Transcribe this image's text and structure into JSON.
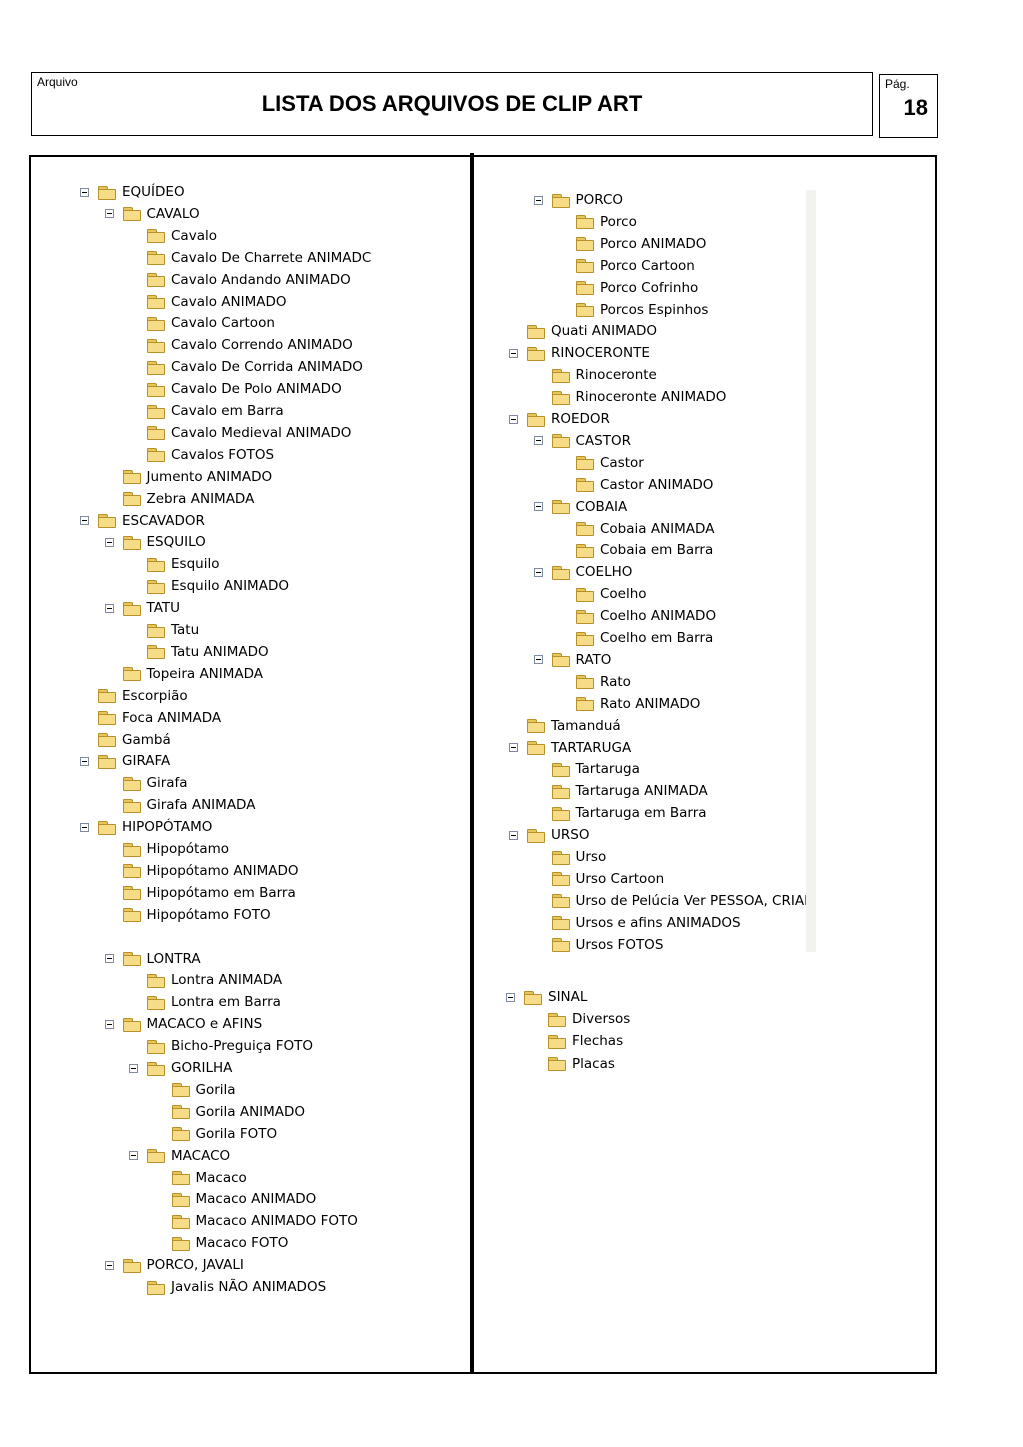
{
  "header": {
    "arquivo_label": "Arquivo",
    "title": "LISTA DOS ARQUIVOS DE CLIP ART",
    "pag_label": "Pág.",
    "page_number": "18"
  },
  "left_tree": [
    {
      "label": "EQUÍDEO",
      "level": 0,
      "expanded": true
    },
    {
      "label": "CAVALO",
      "level": 1,
      "expanded": true
    },
    {
      "label": "Cavalo",
      "level": 2
    },
    {
      "label": "Cavalo  De Charrete ANIMADC",
      "level": 2
    },
    {
      "label": "Cavalo Andando ANIMADO",
      "level": 2
    },
    {
      "label": "Cavalo ANIMADO",
      "level": 2
    },
    {
      "label": "Cavalo Cartoon",
      "level": 2
    },
    {
      "label": "Cavalo Correndo ANIMADO",
      "level": 2
    },
    {
      "label": "Cavalo De Corrida ANIMADO",
      "level": 2
    },
    {
      "label": "Cavalo De Polo  ANIMADO",
      "level": 2
    },
    {
      "label": "Cavalo em Barra",
      "level": 2
    },
    {
      "label": "Cavalo Medieval  ANIMADO",
      "level": 2
    },
    {
      "label": "Cavalos FOTOS",
      "level": 2
    },
    {
      "label": "Jumento ANIMADO",
      "level": 1
    },
    {
      "label": "Zebra ANIMADA",
      "level": 1
    },
    {
      "label": "ESCAVADOR",
      "level": 0,
      "expanded": true
    },
    {
      "label": "ESQUILO",
      "level": 1,
      "expanded": true
    },
    {
      "label": "Esquilo",
      "level": 2
    },
    {
      "label": "Esquilo ANIMADO",
      "level": 2
    },
    {
      "label": "TATU",
      "level": 1,
      "expanded": true
    },
    {
      "label": "Tatu",
      "level": 2
    },
    {
      "label": "Tatu ANIMADO",
      "level": 2
    },
    {
      "label": "Topeira ANIMADA",
      "level": 1
    },
    {
      "label": "Escorpião",
      "level": 0
    },
    {
      "label": "Foca ANIMADA",
      "level": 0
    },
    {
      "label": "Gambá",
      "level": 0
    },
    {
      "label": "GIRAFA",
      "level": 0,
      "expanded": true
    },
    {
      "label": "Girafa",
      "level": 1
    },
    {
      "label": "Girafa ANIMADA",
      "level": 1
    },
    {
      "label": "HIPOPÓTAMO",
      "level": 0,
      "expanded": true
    },
    {
      "label": "Hipopótamo",
      "level": 1
    },
    {
      "label": "Hipopótamo ANIMADO",
      "level": 1
    },
    {
      "label": "Hipopótamo em Barra",
      "level": 1
    },
    {
      "label": "Hipopótamo FOTO",
      "level": 1
    },
    {
      "label": "",
      "level": 0,
      "spacer": true
    },
    {
      "label": "LONTRA",
      "level": 1,
      "expanded": true
    },
    {
      "label": "Lontra ANIMADA",
      "level": 2
    },
    {
      "label": "Lontra em Barra",
      "level": 2
    },
    {
      "label": "MACACO e AFINS",
      "level": 1,
      "expanded": true
    },
    {
      "label": "Bicho-Preguiça FOTO",
      "level": 2
    },
    {
      "label": "GORILHA",
      "level": 2,
      "expanded": true
    },
    {
      "label": "Gorila",
      "level": 3
    },
    {
      "label": "Gorila ANIMADO",
      "level": 3
    },
    {
      "label": "Gorila FOTO",
      "level": 3
    },
    {
      "label": "MACACO",
      "level": 2,
      "expanded": true
    },
    {
      "label": "Macaco",
      "level": 3
    },
    {
      "label": "Macaco ANIMADO",
      "level": 3
    },
    {
      "label": "Macaco ANIMADO FOTO",
      "level": 3
    },
    {
      "label": "Macaco FOTO",
      "level": 3
    },
    {
      "label": "PORCO,  JAVALI",
      "level": 1,
      "expanded": true
    },
    {
      "label": "Javalis NÃO ANIMADOS",
      "level": 2
    }
  ],
  "right_tree": [
    {
      "label": "PORCO",
      "level": 1,
      "expanded": true
    },
    {
      "label": "Porco",
      "level": 2
    },
    {
      "label": "Porco ANIMADO",
      "level": 2
    },
    {
      "label": "Porco Cartoon",
      "level": 2
    },
    {
      "label": "Porco Cofrinho",
      "level": 2
    },
    {
      "label": "Porcos Espinhos",
      "level": 2
    },
    {
      "label": "Quati ANIMADO",
      "level": 0
    },
    {
      "label": "RINOCERONTE",
      "level": 0,
      "expanded": true
    },
    {
      "label": "Rinoceronte",
      "level": 1
    },
    {
      "label": "Rinoceronte ANIMADO",
      "level": 1
    },
    {
      "label": "ROEDOR",
      "level": 0,
      "expanded": true
    },
    {
      "label": "CASTOR",
      "level": 1,
      "expanded": true
    },
    {
      "label": "Castor",
      "level": 2
    },
    {
      "label": "Castor ANIMADO",
      "level": 2
    },
    {
      "label": "COBAIA",
      "level": 1,
      "expanded": true
    },
    {
      "label": "Cobaia ANIMADA",
      "level": 2
    },
    {
      "label": "Cobaia em Barra",
      "level": 2
    },
    {
      "label": "COELHO",
      "level": 1,
      "expanded": true
    },
    {
      "label": "Coelho",
      "level": 2
    },
    {
      "label": "Coelho ANIMADO",
      "level": 2
    },
    {
      "label": "Coelho em Barra",
      "level": 2
    },
    {
      "label": "RATO",
      "level": 1,
      "expanded": true
    },
    {
      "label": "Rato",
      "level": 2
    },
    {
      "label": "Rato ANIMADO",
      "level": 2
    },
    {
      "label": "Tamanduá",
      "level": 0
    },
    {
      "label": "TARTARUGA",
      "level": 0,
      "expanded": true
    },
    {
      "label": "Tartaruga",
      "level": 1
    },
    {
      "label": "Tartaruga ANIMADA",
      "level": 1
    },
    {
      "label": "Tartaruga em  Barra",
      "level": 1
    },
    {
      "label": "URSO",
      "level": 0,
      "expanded": true
    },
    {
      "label": "Urso",
      "level": 1
    },
    {
      "label": "Urso Cartoon",
      "level": 1
    },
    {
      "label": "Urso de Pelúcia Ver PESSOA, CRIANÇA",
      "level": 1
    },
    {
      "label": "Ursos e afins ANIMADOS",
      "level": 1
    },
    {
      "label": "Ursos FOTOS",
      "level": 1
    }
  ],
  "right_tree_bottom": [
    {
      "label": "SINAL",
      "level": 0,
      "expanded": true
    },
    {
      "label": "Diversos",
      "level": 1
    },
    {
      "label": "Flechas",
      "level": 1
    },
    {
      "label": "Placas",
      "level": 1
    }
  ]
}
